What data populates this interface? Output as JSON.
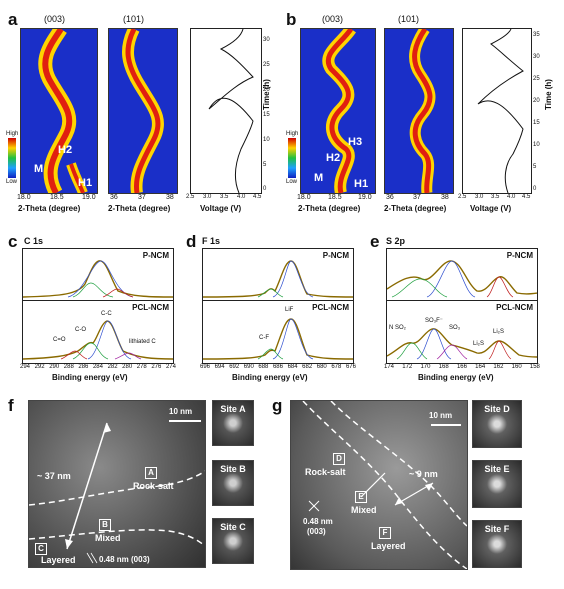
{
  "panels": {
    "a": {
      "label": "a",
      "peak1": "(003)",
      "peak2": "(101)",
      "xlabel": "2-Theta (degree)",
      "xticks1": [
        "18.0",
        "18.5",
        "19.0"
      ],
      "xticks2": [
        "36",
        "37",
        "38"
      ],
      "phase_labels": [
        "H2",
        "M",
        "H1"
      ],
      "colorbar": {
        "high": "High",
        "low": "Low"
      },
      "voltage_xlabel": "Voltage (V)",
      "voltage_xticks": [
        "2.5",
        "3.0",
        "3.5",
        "4.0",
        "4.5"
      ],
      "time_label": "Time (h)",
      "time_ticks": [
        "0",
        "5",
        "10",
        "15",
        "20",
        "25",
        "30"
      ]
    },
    "b": {
      "label": "b",
      "peak1": "(003)",
      "peak2": "(101)",
      "xlabel": "2-Theta (degree)",
      "xticks1": [
        "18.0",
        "18.5",
        "19.0"
      ],
      "xticks2": [
        "36",
        "37",
        "38"
      ],
      "phase_labels": [
        "H3",
        "H2",
        "M",
        "H1"
      ],
      "colorbar": {
        "high": "High",
        "low": "Low"
      },
      "voltage_xlabel": "Voltage (V)",
      "voltage_xticks": [
        "2.5",
        "3.0",
        "3.5",
        "4.0",
        "4.5"
      ],
      "time_label": "Time (h)",
      "time_ticks": [
        "0",
        "5",
        "10",
        "15",
        "20",
        "25",
        "30",
        "35"
      ]
    },
    "c": {
      "label": "c",
      "element": "C 1s",
      "top_sample": "P-NCM",
      "bottom_sample": "PCL-NCM",
      "peak_labels": [
        "C-C",
        "C-O",
        "C=O",
        "lithiated C"
      ],
      "xlabel": "Binding energy (eV)",
      "xticks": [
        "294",
        "292",
        "290",
        "288",
        "286",
        "284",
        "282",
        "280",
        "278",
        "276",
        "274"
      ]
    },
    "d": {
      "label": "d",
      "element": "F 1s",
      "top_sample": "P-NCM",
      "bottom_sample": "PCL-NCM",
      "peak_labels": [
        "LiF",
        "C-F"
      ],
      "xlabel": "Binding energy (eV)",
      "xticks": [
        "696",
        "694",
        "692",
        "690",
        "688",
        "686",
        "684",
        "682",
        "680",
        "678",
        "676"
      ]
    },
    "e": {
      "label": "e",
      "element": "S 2p",
      "top_sample": "P-NCM",
      "bottom_sample": "PCL-NCM",
      "peak_labels": [
        "SO₃F⁻",
        "N SO₂",
        "SO₃",
        "Li₂S",
        "Li₂S"
      ],
      "xlabel": "Binding energy (eV)",
      "xticks": [
        "174",
        "172",
        "170",
        "168",
        "166",
        "164",
        "162",
        "160",
        "158"
      ]
    },
    "f": {
      "label": "f",
      "scale": "10 nm",
      "thickness": "~ 37 nm",
      "regions": [
        {
          "tag": "A",
          "name": "Rock-salt"
        },
        {
          "tag": "B",
          "name": "Mixed"
        },
        {
          "tag": "C",
          "name": "Layered"
        }
      ],
      "lattice": "0.48 nm (003)",
      "sites": [
        "Site A",
        "Site B",
        "Site C"
      ]
    },
    "g": {
      "label": "g",
      "scale": "10 nm",
      "thickness": "~ 9 nm",
      "regions": [
        {
          "tag": "D",
          "name": "Rock-salt"
        },
        {
          "tag": "E",
          "name": "Mixed"
        },
        {
          "tag": "F",
          "name": "Layered"
        }
      ],
      "lattice_value": "0.48 nm",
      "lattice_plane": "(003)",
      "sites": [
        "Site D",
        "Site E",
        "Site F"
      ]
    }
  }
}
